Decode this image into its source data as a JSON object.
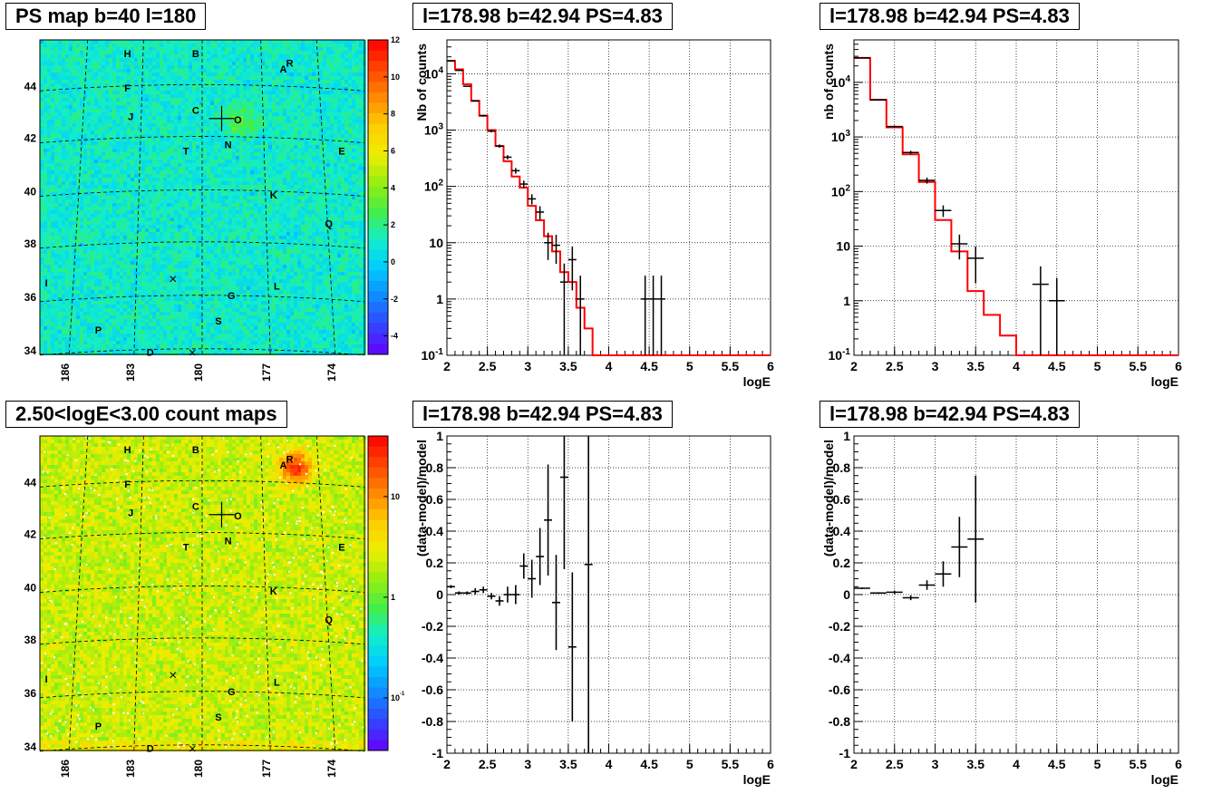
{
  "panels": {
    "map_top": {
      "title": "PS map b=40 l=180"
    },
    "map_bottom": {
      "title": "2.50<logE<3.00 count maps"
    },
    "spec_a": {
      "title": "l=178.98 b=42.94 PS=4.83"
    },
    "spec_b": {
      "title": "l=178.98 b=42.94 PS=4.83"
    },
    "res_a": {
      "title": "l=178.98 b=42.94 PS=4.83"
    },
    "res_b": {
      "title": "l=178.98 b=42.94 PS=4.83"
    }
  },
  "chart_data": [
    {
      "id": "map_top",
      "type": "heatmap",
      "title": "PS map b=40 l=180",
      "x_ticks": [
        "186",
        "183",
        "180",
        "177",
        "174"
      ],
      "y_ticks": [
        "34",
        "36",
        "38",
        "40",
        "42",
        "44"
      ],
      "colorbar": {
        "scale": "linear",
        "range": [
          -5,
          12
        ],
        "ticks": [
          "-4",
          "-2",
          "0",
          "2",
          "4",
          "6",
          "8",
          "10",
          "12"
        ]
      },
      "sources": [
        "H",
        "B",
        "R",
        "A",
        "F",
        "J",
        "C",
        "O",
        "N",
        "T",
        "E",
        "K",
        "Q",
        "I",
        "G",
        "L",
        "P",
        "S",
        "D"
      ],
      "grid": true
    },
    {
      "id": "map_bottom",
      "type": "heatmap",
      "title": "2.50<logE<3.00 count maps",
      "x_ticks": [
        "186",
        "183",
        "180",
        "177",
        "174"
      ],
      "y_ticks": [
        "34",
        "36",
        "38",
        "40",
        "42",
        "44"
      ],
      "colorbar": {
        "scale": "log",
        "range": [
          0.03,
          40
        ],
        "ticks": [
          "10^-1",
          "1",
          "10"
        ]
      },
      "sources": [
        "H",
        "B",
        "R",
        "A",
        "F",
        "J",
        "C",
        "O",
        "N",
        "T",
        "E",
        "K",
        "Q",
        "I",
        "G",
        "L",
        "P",
        "S",
        "D"
      ],
      "grid": true
    },
    {
      "id": "spec_a",
      "type": "line",
      "title": "l=178.98 b=42.94 PS=4.83",
      "xlabel": "logE",
      "ylabel": "Nb of counts",
      "xlim": [
        2,
        6
      ],
      "ylim": [
        0.1,
        40000
      ],
      "yscale": "log",
      "x_ticks": [
        "2",
        "2.5",
        "3",
        "3.5",
        "4",
        "4.5",
        "5",
        "5.5",
        "6"
      ],
      "y_ticks": [
        "10^-1",
        "1",
        "10",
        "10^2",
        "10^3",
        "10^4"
      ],
      "grid": true,
      "series": [
        {
          "kind": "step",
          "color": "#ff0000",
          "bin_width": 0.1,
          "x_start": 2.0,
          "values": [
            17000,
            12000,
            6500,
            3300,
            1800,
            1000,
            520,
            280,
            150,
            95,
            45,
            25,
            13,
            7,
            3,
            2,
            0.7,
            0.3,
            0.1,
            0.1,
            0.1,
            0.1,
            0.1,
            0.1,
            0.1,
            0.1,
            0.1,
            0.1,
            0.1,
            0.1,
            0.1,
            0.1,
            0.1,
            0.1,
            0.1,
            0.1,
            0.1,
            0.1,
            0.1,
            0.1
          ]
        },
        {
          "kind": "points",
          "color": "#000000",
          "points": [
            {
              "x": 2.05,
              "y": 17000
            },
            {
              "x": 2.15,
              "y": 11500
            },
            {
              "x": 2.25,
              "y": 6000
            },
            {
              "x": 2.35,
              "y": 3300
            },
            {
              "x": 2.45,
              "y": 1800
            },
            {
              "x": 2.55,
              "y": 960
            },
            {
              "x": 2.65,
              "y": 520
            },
            {
              "x": 2.75,
              "y": 330
            },
            {
              "x": 2.85,
              "y": 190
            },
            {
              "x": 2.95,
              "y": 110
            },
            {
              "x": 3.05,
              "y": 60
            },
            {
              "x": 3.15,
              "y": 35
            },
            {
              "x": 3.25,
              "y": 10
            },
            {
              "x": 3.35,
              "y": 9
            },
            {
              "x": 3.45,
              "y": 2
            },
            {
              "x": 3.55,
              "y": 5
            },
            {
              "x": 3.65,
              "y": 1
            },
            {
              "x": 4.45,
              "y": 1
            },
            {
              "x": 4.55,
              "y": 1
            },
            {
              "x": 4.65,
              "y": 1
            }
          ]
        }
      ]
    },
    {
      "id": "spec_b",
      "type": "line",
      "title": "l=178.98 b=42.94 PS=4.83",
      "xlabel": "logE",
      "ylabel": "nb of counts",
      "xlim": [
        2,
        6
      ],
      "ylim": [
        0.1,
        60000
      ],
      "yscale": "log",
      "x_ticks": [
        "2",
        "2.5",
        "3",
        "3.5",
        "4",
        "4.5",
        "5",
        "5.5",
        "6"
      ],
      "y_ticks": [
        "10^-1",
        "1",
        "10",
        "10^2",
        "10^3",
        "10^4"
      ],
      "grid": true,
      "series": [
        {
          "kind": "step",
          "color": "#ff0000",
          "bin_width": 0.2,
          "x_start": 2.0,
          "values": [
            28000,
            4800,
            1500,
            480,
            150,
            30,
            8,
            1.5,
            0.55,
            0.23,
            0.1,
            0.1,
            0.1,
            0.1,
            0.1,
            0.1,
            0.1,
            0.1,
            0.1,
            0.1
          ]
        },
        {
          "kind": "points",
          "color": "#000000",
          "points": [
            {
              "x": 2.1,
              "y": 28000
            },
            {
              "x": 2.3,
              "y": 4800
            },
            {
              "x": 2.5,
              "y": 1550
            },
            {
              "x": 2.7,
              "y": 520
            },
            {
              "x": 2.9,
              "y": 160
            },
            {
              "x": 3.1,
              "y": 45
            },
            {
              "x": 3.3,
              "y": 11
            },
            {
              "x": 3.5,
              "y": 6
            },
            {
              "x": 4.3,
              "y": 2
            },
            {
              "x": 4.5,
              "y": 1
            }
          ]
        }
      ]
    },
    {
      "id": "res_a",
      "type": "scatter",
      "title": "l=178.98 b=42.94 PS=4.83",
      "xlabel": "logE",
      "ylabel": "(data-model)/model",
      "xlim": [
        2,
        6
      ],
      "ylim": [
        -1,
        1
      ],
      "x_ticks": [
        "2",
        "2.5",
        "3",
        "3.5",
        "4",
        "4.5",
        "5",
        "5.5",
        "6"
      ],
      "y_ticks": [
        "-1",
        "-0.8",
        "-0.6",
        "-0.4",
        "-0.2",
        "0",
        "0.2",
        "0.4",
        "0.6",
        "0.8",
        "1"
      ],
      "grid": true,
      "points": [
        {
          "x": 2.05,
          "y": 0.05,
          "err": 0.01
        },
        {
          "x": 2.15,
          "y": 0.01,
          "err": 0.01
        },
        {
          "x": 2.25,
          "y": 0.01,
          "err": 0.01
        },
        {
          "x": 2.35,
          "y": 0.02,
          "err": 0.02
        },
        {
          "x": 2.45,
          "y": 0.03,
          "err": 0.02
        },
        {
          "x": 2.55,
          "y": -0.01,
          "err": 0.02
        },
        {
          "x": 2.65,
          "y": -0.04,
          "err": 0.03
        },
        {
          "x": 2.75,
          "y": 0.0,
          "err": 0.05
        },
        {
          "x": 2.85,
          "y": 0.0,
          "err": 0.06
        },
        {
          "x": 2.95,
          "y": 0.18,
          "err": 0.08
        },
        {
          "x": 3.05,
          "y": 0.1,
          "err": 0.12
        },
        {
          "x": 3.15,
          "y": 0.24,
          "err": 0.18
        },
        {
          "x": 3.25,
          "y": 0.47,
          "err": 0.35
        },
        {
          "x": 3.35,
          "y": -0.05,
          "err": 0.3
        },
        {
          "x": 3.45,
          "y": 0.74,
          "err": 0.58
        },
        {
          "x": 3.55,
          "y": -0.33,
          "err": 0.47
        },
        {
          "x": 3.75,
          "y": 0.19,
          "err": 1.3
        }
      ]
    },
    {
      "id": "res_b",
      "type": "scatter",
      "title": "l=178.98 b=42.94 PS=4.83",
      "xlabel": "logE",
      "ylabel": "(data-model)/model",
      "xlim": [
        2,
        6
      ],
      "ylim": [
        -1,
        1
      ],
      "x_ticks": [
        "2",
        "2.5",
        "3",
        "3.5",
        "4",
        "4.5",
        "5",
        "5.5",
        "6"
      ],
      "y_ticks": [
        "-1",
        "-0.8",
        "-0.6",
        "-0.4",
        "-0.2",
        "0",
        "0.2",
        "0.4",
        "0.6",
        "0.8",
        "1"
      ],
      "grid": true,
      "points": [
        {
          "x": 2.1,
          "y": 0.04,
          "err": 0.005
        },
        {
          "x": 2.3,
          "y": 0.01,
          "err": 0.005
        },
        {
          "x": 2.5,
          "y": 0.015,
          "err": 0.01
        },
        {
          "x": 2.7,
          "y": -0.02,
          "err": 0.015
        },
        {
          "x": 2.9,
          "y": 0.06,
          "err": 0.03
        },
        {
          "x": 3.1,
          "y": 0.13,
          "err": 0.08
        },
        {
          "x": 3.3,
          "y": 0.3,
          "err": 0.19
        },
        {
          "x": 3.5,
          "y": 0.35,
          "err": 0.4
        }
      ]
    }
  ]
}
